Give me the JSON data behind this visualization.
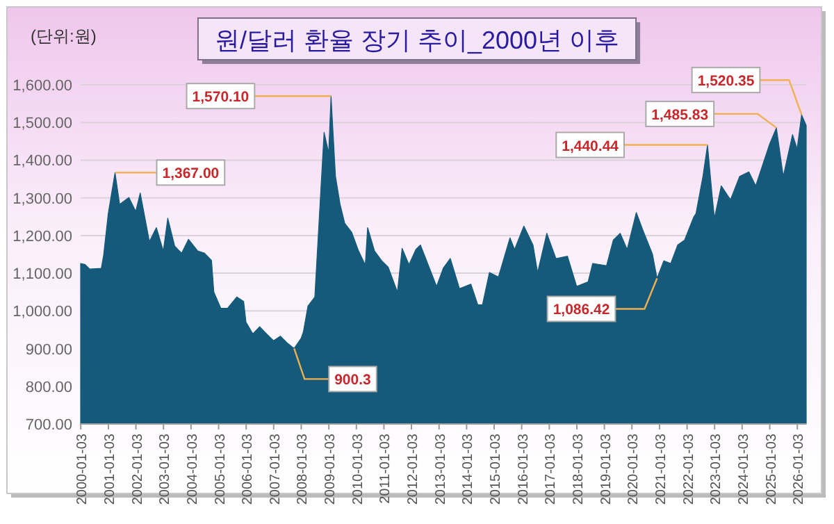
{
  "chart_data": {
    "type": "area",
    "title": "원/달러 환율 장기 추이_2000년 이후",
    "ylabel": "(단위:원)",
    "x": [
      "2000-01",
      "2000-03",
      "2000-05",
      "2000-10",
      "2000-11",
      "2001-01",
      "2001-04",
      "2001-06",
      "2001-10",
      "2002-01",
      "2002-03",
      "2002-07",
      "2002-10",
      "2003-01",
      "2003-03",
      "2003-06",
      "2003-09",
      "2003-12",
      "2004-04",
      "2004-07",
      "2004-10",
      "2004-11",
      "2005-02",
      "2005-05",
      "2005-09",
      "2005-12",
      "2006-01",
      "2006-04",
      "2006-07",
      "2006-10",
      "2007-01",
      "2007-04",
      "2007-07",
      "2007-10",
      "2008-01",
      "2008-02",
      "2008-04",
      "2008-07",
      "2008-11",
      "2009-01",
      "2009-02",
      "2009-04",
      "2009-06",
      "2009-08",
      "2009-11",
      "2010-02",
      "2010-05",
      "2010-06",
      "2010-09",
      "2010-12",
      "2011-03",
      "2011-07",
      "2011-09",
      "2011-12",
      "2012-03",
      "2012-05",
      "2012-12",
      "2013-03",
      "2013-06",
      "2013-10",
      "2014-03",
      "2014-06",
      "2014-08",
      "2014-11",
      "2015-03",
      "2015-08",
      "2015-10",
      "2016-02",
      "2016-06",
      "2016-08",
      "2016-12",
      "2017-04",
      "2017-09",
      "2018-01",
      "2018-06",
      "2018-08",
      "2019-02",
      "2019-05",
      "2019-08",
      "2019-11",
      "2020-03",
      "2020-06",
      "2020-10",
      "2020-12",
      "2021-03",
      "2021-06",
      "2021-09",
      "2021-12",
      "2022-04",
      "2022-05",
      "2022-08",
      "2022-10",
      "2022-12",
      "2023-01",
      "2023-04",
      "2023-08",
      "2023-12",
      "2024-04",
      "2024-07",
      "2025-01",
      "2025-04",
      "2025-07",
      "2025-11",
      "2026-01",
      "2026-03",
      "2026-05"
    ],
    "series": [
      {
        "color": "#155a7a",
        "values": [
          1126,
          1123,
          1111,
          1113,
          1148,
          1258,
          1367,
          1283,
          1301,
          1264,
          1313,
          1184,
          1221,
          1159,
          1246,
          1172,
          1153,
          1190,
          1159,
          1153,
          1134,
          1050,
          1007,
          1007,
          1037,
          1025,
          970,
          939,
          958,
          939,
          921,
          933,
          915,
          900.3,
          927,
          945,
          1013,
          1037,
          1474,
          1419,
          1570.1,
          1357,
          1283,
          1233,
          1209,
          1159,
          1122,
          1221,
          1159,
          1134,
          1116,
          1050,
          1166,
          1123,
          1163,
          1175,
          1065,
          1114,
          1139,
          1059,
          1071,
          1016,
          1016,
          1102,
          1090,
          1194,
          1163,
          1225,
          1175,
          1102,
          1206,
          1139,
          1145,
          1065,
          1077,
          1126,
          1120,
          1188,
          1206,
          1163,
          1261,
          1212,
          1151,
          1086.42,
          1133,
          1126,
          1175,
          1188,
          1249,
          1258,
          1357,
          1440.44,
          1307,
          1246,
          1332,
          1295,
          1357,
          1369,
          1332,
          1443,
          1485.83,
          1357,
          1468,
          1430,
          1520.35,
          1492
        ]
      }
    ],
    "xlim": [
      "2000-01",
      "2026-05"
    ],
    "xticks": [
      "2000-01-03",
      "2001-01-03",
      "2002-01-03",
      "2003-01-03",
      "2004-01-03",
      "2005-01-03",
      "2006-01-03",
      "2007-01-03",
      "2008-01-03",
      "2009-01-03",
      "2010-01-03",
      "2011-01-03",
      "2012-01-03",
      "2013-01-03",
      "2014-01-03",
      "2015-01-03",
      "2016-01-03",
      "2017-01-03",
      "2018-01-03",
      "2019-01-03",
      "2020-01-03",
      "2021-01-03",
      "2022-01-03",
      "2023-01-03",
      "2024-01-03",
      "2025-01-03",
      "2026-01-03"
    ],
    "ylim": [
      700,
      1600
    ],
    "yticks": [
      {
        "value": 700,
        "label": "700.00"
      },
      {
        "value": 800,
        "label": "800.00"
      },
      {
        "value": 900,
        "label": "900.00"
      },
      {
        "value": 1000,
        "label": "1,000.00"
      },
      {
        "value": 1100,
        "label": "1,100.00"
      },
      {
        "value": 1200,
        "label": "1,200.00"
      },
      {
        "value": 1300,
        "label": "1,300.00"
      },
      {
        "value": 1400,
        "label": "1,400.00"
      },
      {
        "value": 1500,
        "label": "1,500.00"
      },
      {
        "value": 1600,
        "label": "1,600.00"
      }
    ],
    "grid": "y",
    "annotations": [
      {
        "text": "1,367.00",
        "x": "2001-04",
        "y": 1367
      },
      {
        "text": "1,570.10",
        "x": "2009-02",
        "y": 1570.1
      },
      {
        "text": "900.3",
        "x": "2007-10",
        "y": 900.3
      },
      {
        "text": "1,086.42",
        "x": "2020-12",
        "y": 1086.42
      },
      {
        "text": "1,440.44",
        "x": "2022-10",
        "y": 1440.44
      },
      {
        "text": "1,485.83",
        "x": "2025-04",
        "y": 1485.83
      },
      {
        "text": "1,520.35",
        "x": "2026-03",
        "y": 1520.35
      }
    ]
  }
}
